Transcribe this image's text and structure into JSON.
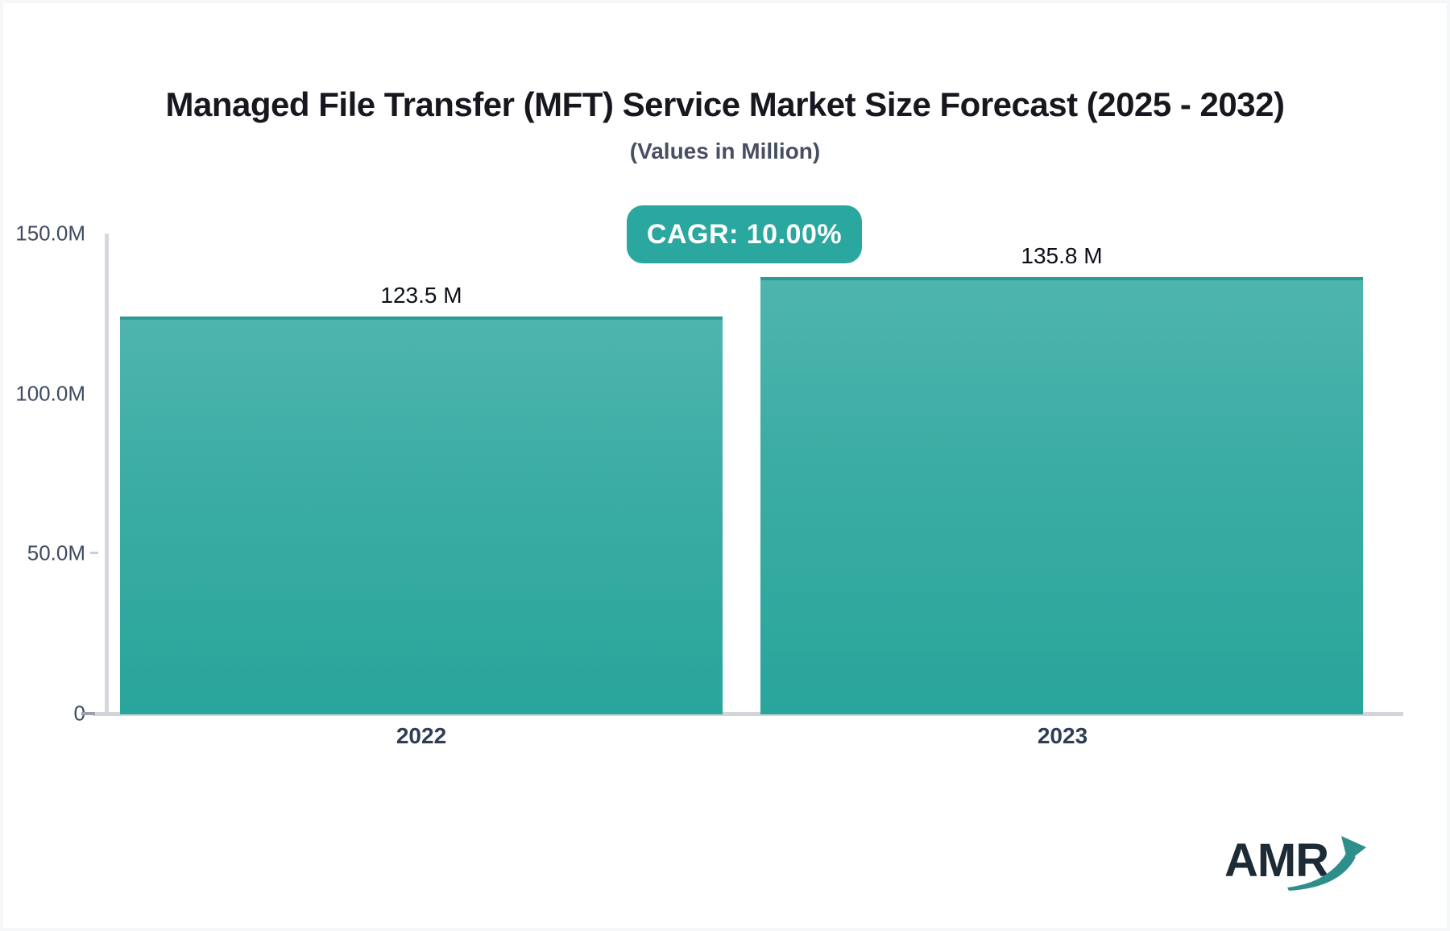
{
  "chart_data": {
    "type": "bar",
    "title": "Managed File Transfer (MFT) Service Market Size Forecast (2025 - 2032)",
    "subtitle": "(Values in Million)",
    "cagr_label": "CAGR: 10.00%",
    "categories": [
      "2022",
      "2023"
    ],
    "values": [
      123.5,
      135.8
    ],
    "value_labels": [
      "123.5 M",
      "135.8 M"
    ],
    "unit": "Million",
    "xlabel": "",
    "ylabel": "",
    "ylim": [
      0,
      150
    ],
    "ytick_labels": [
      "150.0M",
      "100.0M",
      "50.0M",
      "0"
    ],
    "grid": "off",
    "legend": "none",
    "colors": {
      "bar_gradient_top": "#4eb5ae",
      "bar_gradient_bottom": "#29a59b",
      "bar_top_border": "#2c9b94",
      "badge_background": "#2aa79e",
      "badge_text": "#ffffff",
      "axis_line": "#d5d8de",
      "title_text": "#17181f",
      "subtitle_text": "#475063",
      "tick_text": "#3e4c61"
    }
  },
  "branding": {
    "logo_text": "AMR",
    "logo_text_color": "#1d2b36",
    "logo_arrow_color": "#2e8e8b"
  }
}
